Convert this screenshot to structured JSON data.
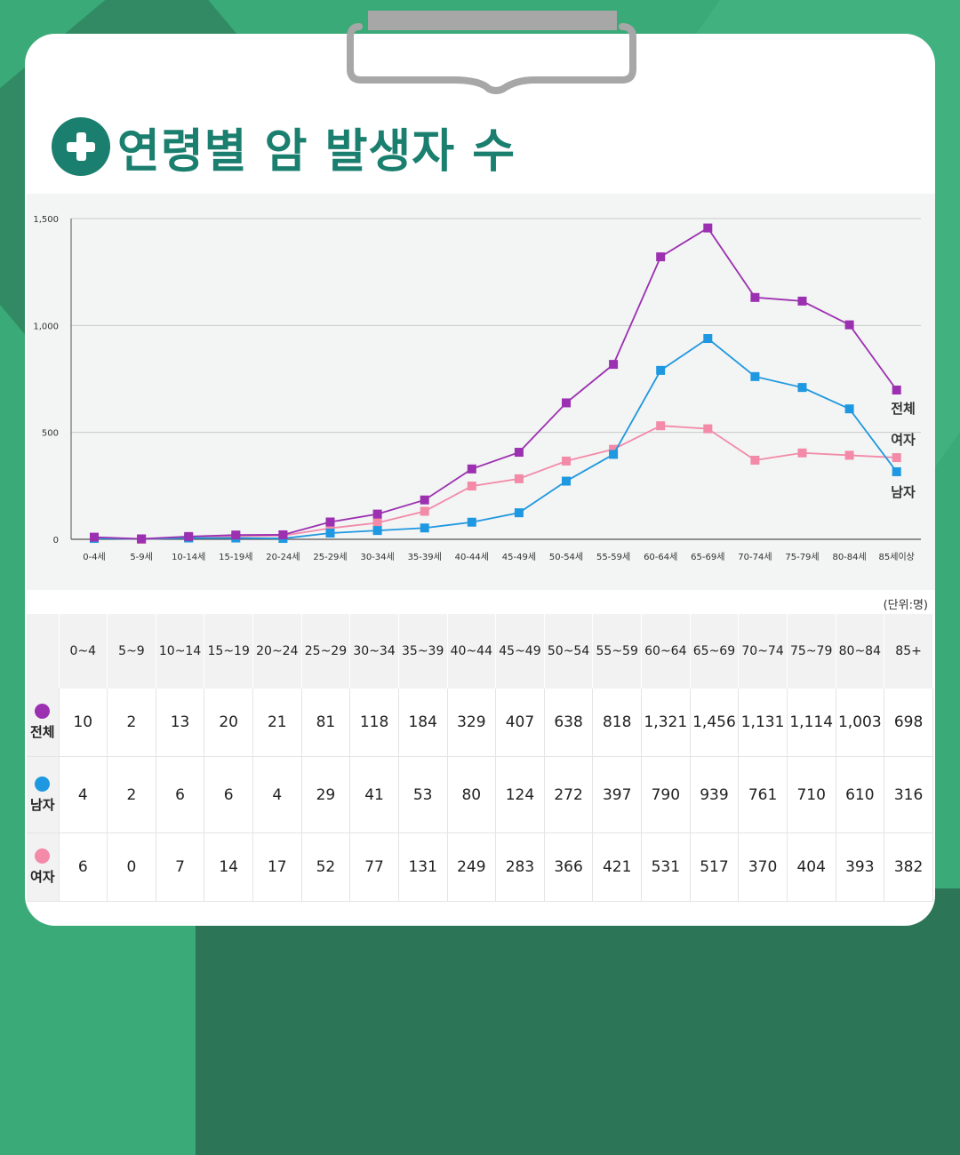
{
  "title": "연령별 암 발생자 수",
  "icon": "plus-circle-icon",
  "unit_label": "(단위:명)",
  "colors": {
    "total": "#9b30b0",
    "male": "#1e98e0",
    "female": "#f28aa8",
    "accent": "#1a7f6e"
  },
  "chart_data": {
    "type": "line",
    "categories": [
      "0-4세",
      "5-9세",
      "10-14세",
      "15-19세",
      "20-24세",
      "25-29세",
      "30-34세",
      "35-39세",
      "40-44세",
      "45-49세",
      "50-54세",
      "55-59세",
      "60-64세",
      "65-69세",
      "70-74세",
      "75-79세",
      "80-84세",
      "85세이상"
    ],
    "ylim": [
      0,
      1500
    ],
    "yticks": [
      0,
      500,
      1000,
      1500
    ],
    "ytick_labels": [
      "0",
      "500",
      "1,000",
      "1,500"
    ],
    "grid": true,
    "series": [
      {
        "name": "전체",
        "key": "total",
        "values": [
          10,
          2,
          13,
          20,
          21,
          81,
          118,
          184,
          329,
          407,
          638,
          818,
          1321,
          1456,
          1131,
          1114,
          1003,
          698
        ]
      },
      {
        "name": "남자",
        "key": "male",
        "values": [
          4,
          2,
          6,
          6,
          4,
          29,
          41,
          53,
          80,
          124,
          272,
          397,
          790,
          939,
          761,
          710,
          610,
          316
        ]
      },
      {
        "name": "여자",
        "key": "female",
        "values": [
          6,
          0,
          7,
          14,
          17,
          52,
          77,
          131,
          249,
          283,
          366,
          421,
          531,
          517,
          370,
          404,
          393,
          382
        ]
      }
    ]
  },
  "table": {
    "headers": [
      "0~4",
      "5~9",
      "10~14",
      "15~19",
      "20~24",
      "25~29",
      "30~34",
      "35~39",
      "40~44",
      "45~49",
      "50~54",
      "55~59",
      "60~64",
      "65~69",
      "70~74",
      "75~79",
      "80~84",
      "85+"
    ],
    "rows": [
      {
        "label": "전체",
        "key": "total",
        "cells": [
          "10",
          "2",
          "13",
          "20",
          "21",
          "81",
          "118",
          "184",
          "329",
          "407",
          "638",
          "818",
          "1,321",
          "1,456",
          "1,131",
          "1,114",
          "1,003",
          "698"
        ]
      },
      {
        "label": "남자",
        "key": "male",
        "cells": [
          "4",
          "2",
          "6",
          "6",
          "4",
          "29",
          "41",
          "53",
          "80",
          "124",
          "272",
          "397",
          "790",
          "939",
          "761",
          "710",
          "610",
          "316"
        ]
      },
      {
        "label": "여자",
        "key": "female",
        "cells": [
          "6",
          "0",
          "7",
          "14",
          "17",
          "52",
          "77",
          "131",
          "249",
          "283",
          "366",
          "421",
          "531",
          "517",
          "370",
          "404",
          "393",
          "382"
        ]
      }
    ]
  }
}
